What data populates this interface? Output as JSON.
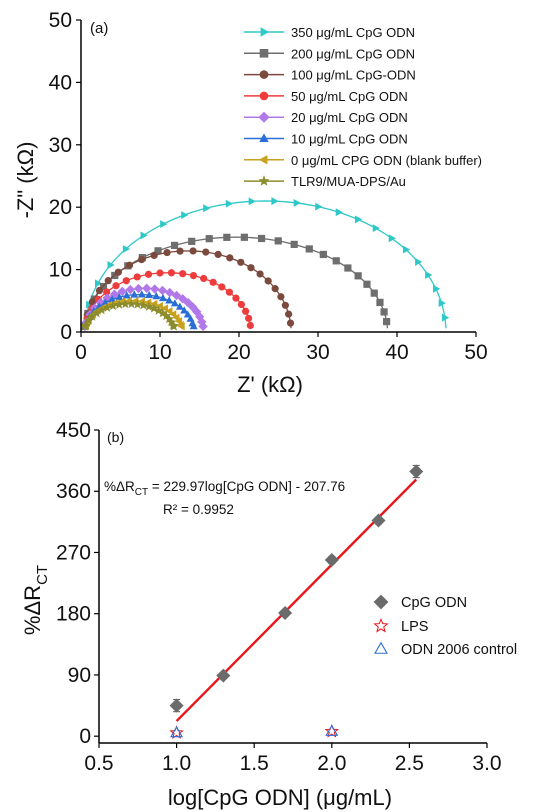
{
  "chart_data": [
    {
      "type": "scatter",
      "panel_label": "(a)",
      "xlabel": "Z' (kΩ)",
      "ylabel": "-Z\" (kΩ)",
      "xlim": [
        0,
        50
      ],
      "ylim": [
        0,
        50
      ],
      "xticks": [
        "0",
        "10",
        "20",
        "30",
        "40",
        "50"
      ],
      "yticks": [
        "0",
        "10",
        "20",
        "30",
        "40",
        "50"
      ],
      "grid": false,
      "legend_position": "top-right",
      "series": [
        {
          "name": "350 μg/mL CpG ODN",
          "color": "#2fc8c8",
          "marker": "tri-right",
          "x0": 0.5,
          "x1": 46.2,
          "peak": 21.0,
          "n": 24
        },
        {
          "name": "200 μg/mL CpG ODN",
          "color": "#6e6e6e",
          "marker": "square",
          "x0": 0.5,
          "x1": 38.8,
          "peak": 15.2,
          "n": 26
        },
        {
          "name": "100 μg/mL CpG-ODN",
          "color": "#7b4a3e",
          "marker": "circle",
          "x0": 0.5,
          "x1": 26.6,
          "peak": 13.0,
          "n": 24
        },
        {
          "name": "50 μg/mL  CpG ODN",
          "color": "#ee3b3b",
          "marker": "circle",
          "x0": 0.5,
          "x1": 21.5,
          "peak": 9.5,
          "n": 22
        },
        {
          "name": "20 μg/mL  CpG ODN",
          "color": "#b078e8",
          "marker": "diamond",
          "x0": 0.5,
          "x1": 15.5,
          "peak": 7.0,
          "n": 22
        },
        {
          "name": "10 μg/mL  CpG ODN",
          "color": "#2a6fd6",
          "marker": "tri-up",
          "x0": 0.5,
          "x1": 14.3,
          "peak": 6.0,
          "n": 22
        },
        {
          "name": "0 μg/mL   CPG ODN (blank buffer)",
          "color": "#c8a21e",
          "marker": "tri-left",
          "x0": 0.5,
          "x1": 12.8,
          "peak": 5.0,
          "n": 22
        },
        {
          "name": "TLR9/MUA-DPS/Au",
          "color": "#8c8c2c",
          "marker": "star",
          "x0": 0.5,
          "x1": 11.8,
          "peak": 4.5,
          "n": 22
        }
      ]
    },
    {
      "type": "scatter",
      "panel_label": "(b)",
      "xlabel": "log[CpG ODN] (μg/mL)",
      "ylabel": "%ΔR",
      "ylabel_sub": "CT",
      "xlim": [
        0.5,
        3.0
      ],
      "ylim": [
        -10,
        450
      ],
      "xticks": [
        "0.5",
        "1.0",
        "1.5",
        "2.0",
        "2.5",
        "3.0"
      ],
      "xtick_values": [
        0.5,
        1.0,
        1.5,
        2.0,
        2.5,
        3.0
      ],
      "yticks": [
        "0",
        "90",
        "180",
        "270",
        "360",
        "450"
      ],
      "ytick_values": [
        0,
        90,
        180,
        270,
        360,
        450
      ],
      "grid": false,
      "legend_position": "right",
      "equation_prefix": "%ΔR",
      "equation_sub": "CT",
      "equation_suffix": " = 229.97log[CpG ODN] - 207.76",
      "r2_label": "R² = 0.9952",
      "fit": {
        "color": "#e8161b",
        "x": [
          1.0,
          2.544
        ],
        "y": [
          22.21,
          377.28
        ]
      },
      "series": [
        {
          "name": "CpG ODN",
          "color": "#6b6b6b",
          "marker": "diamond-filled",
          "x": [
            1.0,
            1.301,
            1.699,
            2.0,
            2.301,
            2.544
          ],
          "y": [
            45,
            89,
            181,
            259,
            317,
            389
          ],
          "err": [
            9,
            3,
            4,
            5,
            5,
            9
          ]
        },
        {
          "name": "LPS",
          "color": "#e8161b",
          "marker": "star-open",
          "x": [
            1.0,
            2.0
          ],
          "y": [
            5,
            7
          ]
        },
        {
          "name": "ODN 2006 control",
          "color": "#2a6fd6",
          "marker": "tri-open",
          "x": [
            1.0,
            2.0
          ],
          "y": [
            5,
            7
          ]
        }
      ]
    }
  ]
}
